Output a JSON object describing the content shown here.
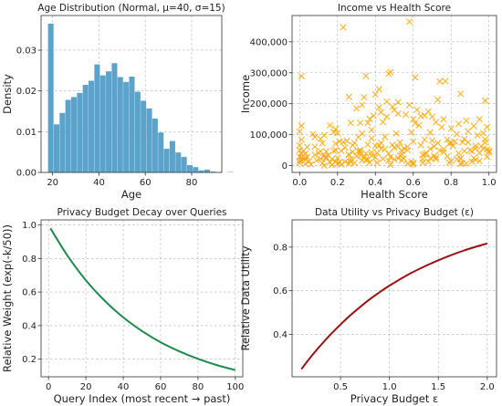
{
  "chart_data": [
    {
      "type": "bar",
      "title": "Age Distribution (Normal, μ=40, σ=15)",
      "xlabel": "Age",
      "ylabel": "Density",
      "xlim": [
        15,
        93
      ],
      "ylim": [
        0,
        0.0385
      ],
      "xticks": [
        20,
        40,
        60,
        80
      ],
      "xtick_labels": [
        "20",
        "40",
        "60",
        "80"
      ],
      "yticks": [
        0,
        0.01,
        0.02,
        0.03
      ],
      "ytick_labels": [
        "0.00",
        "0.01",
        "0.02",
        "0.03"
      ],
      "grid": true,
      "color": "#5ba3cb",
      "bin_start": 18,
      "bin_width": 2.5,
      "values": [
        0.0365,
        0.0118,
        0.0146,
        0.0178,
        0.0185,
        0.0195,
        0.0215,
        0.0225,
        0.0265,
        0.0238,
        0.0248,
        0.0268,
        0.0234,
        0.0222,
        0.0235,
        0.0198,
        0.0176,
        0.0157,
        0.0132,
        0.0098,
        0.0058,
        0.0077,
        0.0049,
        0.0038,
        0.0018,
        0.0013,
        0.0005,
        0.0007,
        0.0002,
        0.0,
        0.0,
        0.0001
      ]
    },
    {
      "type": "scatter",
      "title": "Income vs Health Score",
      "xlabel": "Health Score",
      "ylabel": "Income",
      "xlim": [
        -0.04,
        1.04
      ],
      "ylim": [
        -22000,
        485000
      ],
      "xticks": [
        0,
        0.2,
        0.4,
        0.6,
        0.8,
        1.0
      ],
      "xtick_labels": [
        "0.0",
        "0.2",
        "0.4",
        "0.6",
        "0.8",
        "1.0"
      ],
      "yticks": [
        0,
        100000,
        200000,
        300000,
        400000
      ],
      "ytick_labels": [
        "0",
        "100,000",
        "200,000",
        "300,000",
        "400,000"
      ],
      "grid": true,
      "color": "#ffa500",
      "marker": "x",
      "notable_points": [
        [
          0.58,
          465000
        ],
        [
          0.23,
          447000
        ],
        [
          0.01,
          289000
        ],
        [
          0.48,
          302000
        ],
        [
          0.47,
          297000
        ],
        [
          0.35,
          290000
        ],
        [
          0.61,
          285000
        ],
        [
          0.74,
          272000
        ],
        [
          0.85,
          232000
        ],
        [
          0.73,
          213000
        ],
        [
          0.98,
          210000
        ],
        [
          0.26,
          222000
        ],
        [
          0.34,
          221000
        ],
        [
          0.42,
          247000
        ],
        [
          0.77,
          273000
        ]
      ],
      "bulk_points": [
        [
          0.0,
          8000
        ],
        [
          0.0,
          15000
        ],
        [
          0.0,
          50000
        ],
        [
          0.0,
          65000
        ],
        [
          0.0,
          29000
        ],
        [
          0.01,
          84000
        ],
        [
          0.01,
          129000
        ],
        [
          0.01,
          39000
        ],
        [
          0.01,
          17000
        ],
        [
          0.01,
          27000
        ],
        [
          0.02,
          48000
        ],
        [
          0.03,
          18000
        ],
        [
          0.03,
          25000
        ],
        [
          0.03,
          5000
        ],
        [
          0.04,
          60000
        ],
        [
          0.04,
          28000
        ],
        [
          0.05,
          14000
        ],
        [
          0.06,
          4000
        ],
        [
          0.07,
          102000
        ],
        [
          0.08,
          92000
        ],
        [
          0.08,
          35000
        ],
        [
          0.09,
          17000
        ],
        [
          0.1,
          41000
        ],
        [
          0.11,
          46000
        ],
        [
          0.11,
          86000
        ],
        [
          0.11,
          23000
        ],
        [
          0.12,
          72000
        ],
        [
          0.13,
          98000
        ],
        [
          0.13,
          0
        ],
        [
          0.13,
          30000
        ],
        [
          0.14,
          46000
        ],
        [
          0.14,
          24000
        ],
        [
          0.14,
          28000
        ],
        [
          0.15,
          34000
        ],
        [
          0.16,
          11000
        ],
        [
          0.17,
          2000
        ],
        [
          0.17,
          21000
        ],
        [
          0.18,
          108000
        ],
        [
          0.18,
          47000
        ],
        [
          0.19,
          50000
        ],
        [
          0.19,
          118000
        ],
        [
          0.19,
          71000
        ],
        [
          0.19,
          13000
        ],
        [
          0.2,
          105000
        ],
        [
          0.2,
          25000
        ],
        [
          0.21,
          78000
        ],
        [
          0.21,
          10000
        ],
        [
          0.22,
          4000
        ],
        [
          0.22,
          48000
        ],
        [
          0.23,
          76000
        ],
        [
          0.24,
          13000
        ],
        [
          0.24,
          58000
        ],
        [
          0.26,
          35000
        ],
        [
          0.26,
          6000
        ],
        [
          0.26,
          36000
        ],
        [
          0.27,
          138000
        ],
        [
          0.27,
          21000
        ],
        [
          0.27,
          14000
        ],
        [
          0.27,
          12000
        ],
        [
          0.28,
          45000
        ],
        [
          0.28,
          66000
        ],
        [
          0.29,
          9000
        ],
        [
          0.3,
          31000
        ],
        [
          0.31,
          47000
        ],
        [
          0.31,
          92000
        ],
        [
          0.32,
          44000
        ],
        [
          0.32,
          50000
        ],
        [
          0.32,
          34000
        ],
        [
          0.32,
          138000
        ],
        [
          0.33,
          104000
        ],
        [
          0.33,
          17000
        ],
        [
          0.34,
          28000
        ],
        [
          0.35,
          39000
        ],
        [
          0.35,
          18000
        ],
        [
          0.36,
          68000
        ],
        [
          0.36,
          21000
        ],
        [
          0.36,
          138000
        ],
        [
          0.37,
          10000
        ],
        [
          0.38,
          43000
        ],
        [
          0.38,
          115000
        ],
        [
          0.38,
          33000
        ],
        [
          0.38,
          88000
        ],
        [
          0.4,
          27000
        ],
        [
          0.4,
          64000
        ],
        [
          0.41,
          41000
        ],
        [
          0.41,
          9000
        ],
        [
          0.42,
          65000
        ],
        [
          0.43,
          74000
        ],
        [
          0.43,
          172000
        ],
        [
          0.43,
          55000
        ],
        [
          0.44,
          22000
        ],
        [
          0.45,
          93000
        ],
        [
          0.45,
          53000
        ],
        [
          0.46,
          158000
        ],
        [
          0.47,
          16000
        ],
        [
          0.47,
          39000
        ],
        [
          0.48,
          28000
        ],
        [
          0.48,
          2000
        ],
        [
          0.49,
          67000
        ],
        [
          0.5,
          20000
        ],
        [
          0.5,
          58000
        ],
        [
          0.51,
          104000
        ],
        [
          0.52,
          24000
        ],
        [
          0.52,
          168000
        ],
        [
          0.52,
          61000
        ],
        [
          0.53,
          75000
        ],
        [
          0.53,
          32000
        ],
        [
          0.54,
          47000
        ],
        [
          0.54,
          37000
        ],
        [
          0.54,
          17000
        ],
        [
          0.55,
          56000
        ],
        [
          0.55,
          23000
        ],
        [
          0.57,
          50000
        ],
        [
          0.57,
          7000
        ],
        [
          0.57,
          61000
        ],
        [
          0.59,
          108000
        ],
        [
          0.59,
          12000
        ],
        [
          0.6,
          4000
        ],
        [
          0.6,
          78000
        ],
        [
          0.6,
          9000
        ],
        [
          0.61,
          137000
        ],
        [
          0.63,
          130000
        ],
        [
          0.64,
          66000
        ],
        [
          0.65,
          35000
        ],
        [
          0.65,
          10000
        ],
        [
          0.65,
          21000
        ],
        [
          0.66,
          84000
        ],
        [
          0.66,
          37000
        ],
        [
          0.67,
          40000
        ],
        [
          0.68,
          13000
        ],
        [
          0.69,
          107000
        ],
        [
          0.69,
          54000
        ],
        [
          0.69,
          24000
        ],
        [
          0.7,
          81000
        ],
        [
          0.71,
          62000
        ],
        [
          0.71,
          31000
        ],
        [
          0.72,
          27000
        ],
        [
          0.72,
          21000
        ],
        [
          0.73,
          73000
        ],
        [
          0.74,
          49000
        ],
        [
          0.75,
          124000
        ],
        [
          0.76,
          53000
        ],
        [
          0.76,
          44000
        ],
        [
          0.78,
          30000
        ],
        [
          0.78,
          84000
        ],
        [
          0.79,
          10000
        ],
        [
          0.79,
          71000
        ],
        [
          0.8,
          15000
        ],
        [
          0.8,
          74000
        ],
        [
          0.81,
          64000
        ],
        [
          0.82,
          78000
        ],
        [
          0.83,
          102000
        ],
        [
          0.83,
          21000
        ],
        [
          0.84,
          40000
        ],
        [
          0.85,
          23000
        ],
        [
          0.85,
          24000
        ],
        [
          0.85,
          6000
        ],
        [
          0.86,
          8000
        ],
        [
          0.86,
          76000
        ],
        [
          0.87,
          47000
        ],
        [
          0.87,
          86000
        ],
        [
          0.88,
          7000
        ],
        [
          0.89,
          75000
        ],
        [
          0.89,
          111000
        ],
        [
          0.9,
          50000
        ],
        [
          0.91,
          13000
        ],
        [
          0.91,
          46000
        ],
        [
          0.92,
          25000
        ],
        [
          0.93,
          56000
        ],
        [
          0.93,
          19000
        ],
        [
          0.93,
          64000
        ],
        [
          0.94,
          98000
        ],
        [
          0.95,
          15000
        ],
        [
          0.95,
          41000
        ],
        [
          0.96,
          63000
        ],
        [
          0.97,
          55000
        ],
        [
          0.97,
          105000
        ],
        [
          0.98,
          85000
        ],
        [
          0.98,
          75000
        ],
        [
          0.99,
          52000
        ],
        [
          0.99,
          28000
        ],
        [
          1.0,
          43000
        ],
        [
          1.0,
          48000
        ],
        [
          0.0,
          110000
        ],
        [
          0.03,
          39000
        ],
        [
          0.08,
          61000
        ],
        [
          0.12,
          8000
        ],
        [
          0.16,
          130000
        ],
        [
          0.2,
          6000
        ],
        [
          0.25,
          80000
        ],
        [
          0.29,
          73000
        ],
        [
          0.33,
          196000
        ],
        [
          0.37,
          151000
        ],
        [
          0.39,
          161000
        ],
        [
          0.42,
          188000
        ],
        [
          0.44,
          141000
        ],
        [
          0.46,
          207000
        ],
        [
          0.49,
          190000
        ],
        [
          0.5,
          180000
        ],
        [
          0.52,
          205000
        ],
        [
          0.56,
          165000
        ],
        [
          0.58,
          196000
        ],
        [
          0.6,
          150000
        ],
        [
          0.62,
          180000
        ],
        [
          0.64,
          160000
        ],
        [
          0.66,
          162000
        ],
        [
          0.68,
          175000
        ],
        [
          0.7,
          158000
        ],
        [
          0.72,
          140000
        ],
        [
          0.76,
          150000
        ],
        [
          0.8,
          120000
        ],
        [
          0.84,
          135000
        ],
        [
          0.88,
          145000
        ],
        [
          0.92,
          128000
        ],
        [
          0.95,
          150000
        ],
        [
          0.99,
          125000
        ],
        [
          0.3,
          185000
        ],
        [
          0.4,
          230000
        ]
      ]
    },
    {
      "type": "line",
      "title": "Privacy Budget Decay over Queries",
      "xlabel": "Query Index (most recent → past)",
      "ylabel": "Relative Weight (exp(-k/50))",
      "xlim": [
        -4,
        104
      ],
      "ylim": [
        0.095,
        1.03
      ],
      "xticks": [
        0,
        20,
        40,
        60,
        80,
        100
      ],
      "xtick_labels": [
        "0",
        "20",
        "40",
        "60",
        "80",
        "100"
      ],
      "yticks": [
        0.2,
        0.4,
        0.6,
        0.8,
        1.0
      ],
      "ytick_labels": [
        "0.2",
        "0.4",
        "0.6",
        "0.8",
        "1.0"
      ],
      "grid": true,
      "color": "#1e8a4c",
      "x": [
        1,
        10,
        20,
        30,
        40,
        50,
        60,
        70,
        80,
        90,
        100
      ],
      "y": [
        0.98,
        0.819,
        0.67,
        0.549,
        0.449,
        0.368,
        0.301,
        0.247,
        0.202,
        0.165,
        0.135
      ]
    },
    {
      "type": "line",
      "title": "Data Utility vs Privacy Budget (ε)",
      "xlabel": "Privacy Budget ε",
      "ylabel": "Relative Data Utility",
      "xlim": [
        0.005,
        2.095
      ],
      "ylim": [
        0.205,
        0.925
      ],
      "xticks": [
        0.5,
        1.0,
        1.5,
        2.0
      ],
      "xtick_labels": [
        "0.5",
        "1.0",
        "1.5",
        "2.0"
      ],
      "yticks": [
        0.4,
        0.6,
        0.8
      ],
      "ytick_labels": [
        "0.4",
        "0.6",
        "0.8"
      ],
      "grid": true,
      "color": "#9b1010",
      "x": [
        0.1,
        0.2,
        0.3,
        0.4,
        0.5,
        0.6,
        0.7,
        0.8,
        0.9,
        1.0,
        1.2,
        1.4,
        1.6,
        1.8,
        2.0
      ],
      "y": [
        0.24,
        0.298,
        0.351,
        0.4,
        0.445,
        0.487,
        0.525,
        0.561,
        0.593,
        0.623,
        0.676,
        0.72,
        0.758,
        0.79,
        0.817
      ]
    }
  ]
}
